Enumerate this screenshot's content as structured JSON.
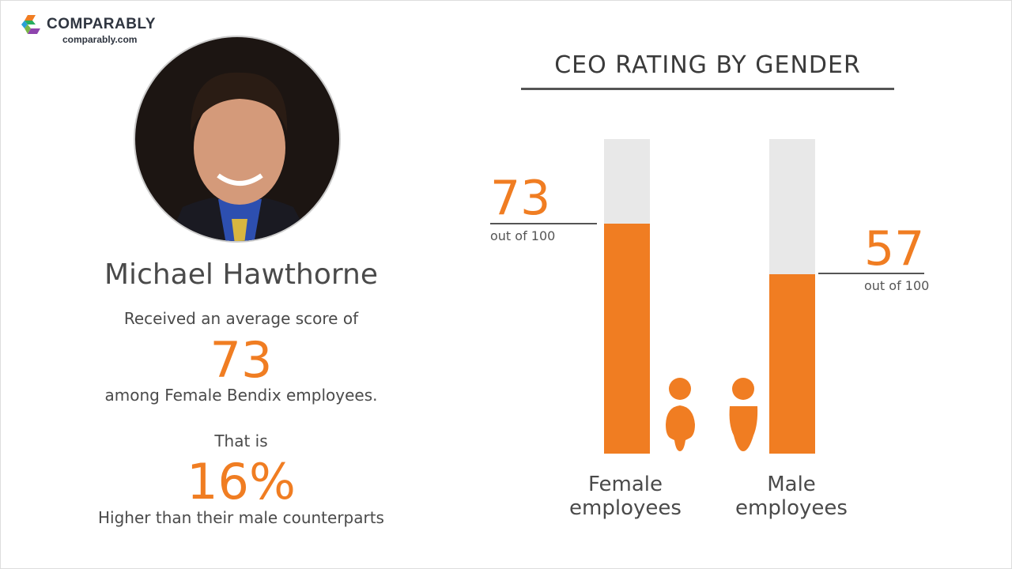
{
  "brand": {
    "name": "COMPARABLY",
    "url": "comparably.com"
  },
  "profile": {
    "name": "Michael Hawthorne",
    "line1": "Received an average score of",
    "score": "73",
    "line2": "among Female Bendix employees.",
    "line3": "That is",
    "percent": "16%",
    "line4": "Higher than their male counterparts"
  },
  "chart_data": {
    "type": "bar",
    "title": "CEO RATING BY GENDER",
    "categories": [
      "Female employees",
      "Male employees"
    ],
    "values": [
      73,
      57
    ],
    "value_labels": [
      "73",
      "57"
    ],
    "suffix": "out of 100",
    "ylim": [
      0,
      100
    ],
    "colors": {
      "fill": "#f07d22",
      "track": "#e8e8e8"
    },
    "icons": [
      "female-person-icon",
      "male-person-icon"
    ]
  }
}
